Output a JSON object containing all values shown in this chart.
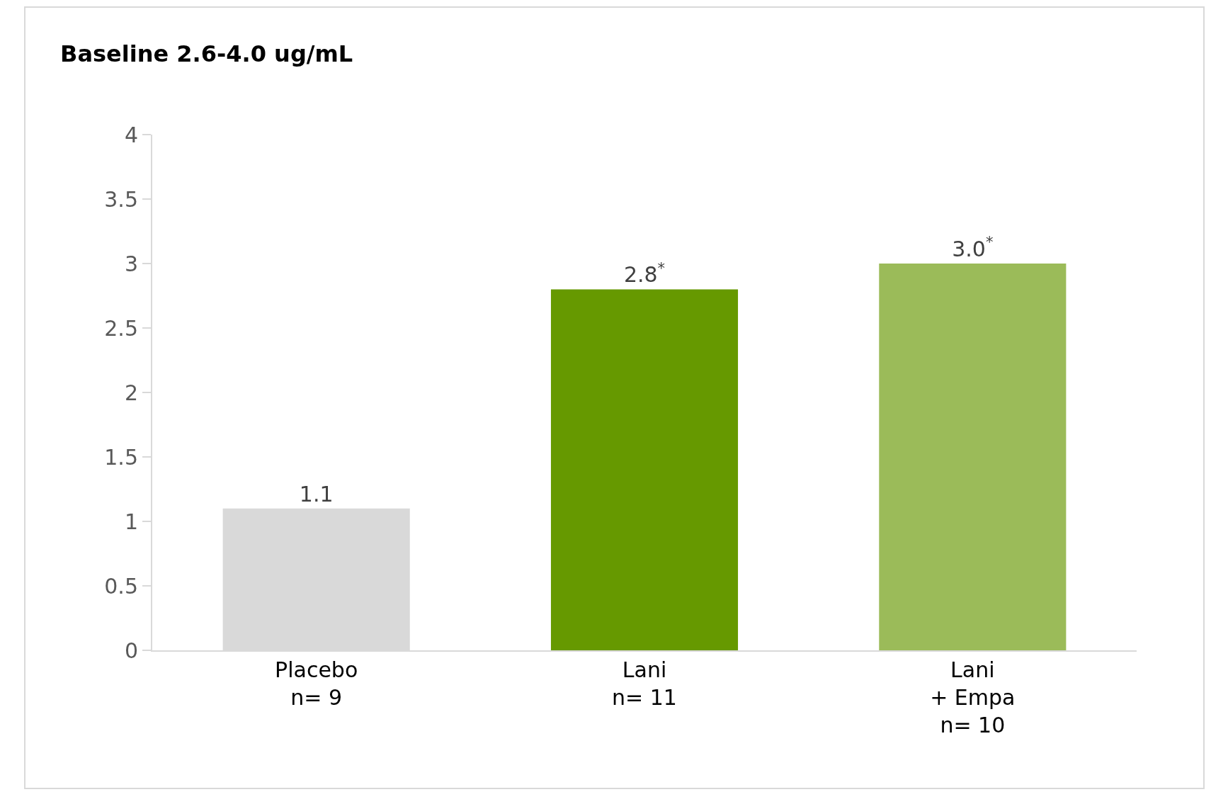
{
  "chart_data": {
    "type": "bar",
    "title": "Baseline 2.6-4.0 ug/mL",
    "categories": [
      "Placebo\nn= 9",
      "Lani\nn= 11",
      "Lani\n+ Empa\nn= 10"
    ],
    "values": [
      1.1,
      2.8,
      3.0
    ],
    "colors": [
      "#d9d9d9",
      "#669900",
      "#9bbb59"
    ],
    "value_labels": [
      "1.1",
      "2.8$^{*}$",
      "3.0$^{*}$"
    ],
    "ylim": [
      0,
      4
    ],
    "yticks": [
      0,
      0.5,
      1,
      1.5,
      2,
      2.5,
      3,
      3.5,
      4
    ],
    "grid": false,
    "legend": false
  }
}
